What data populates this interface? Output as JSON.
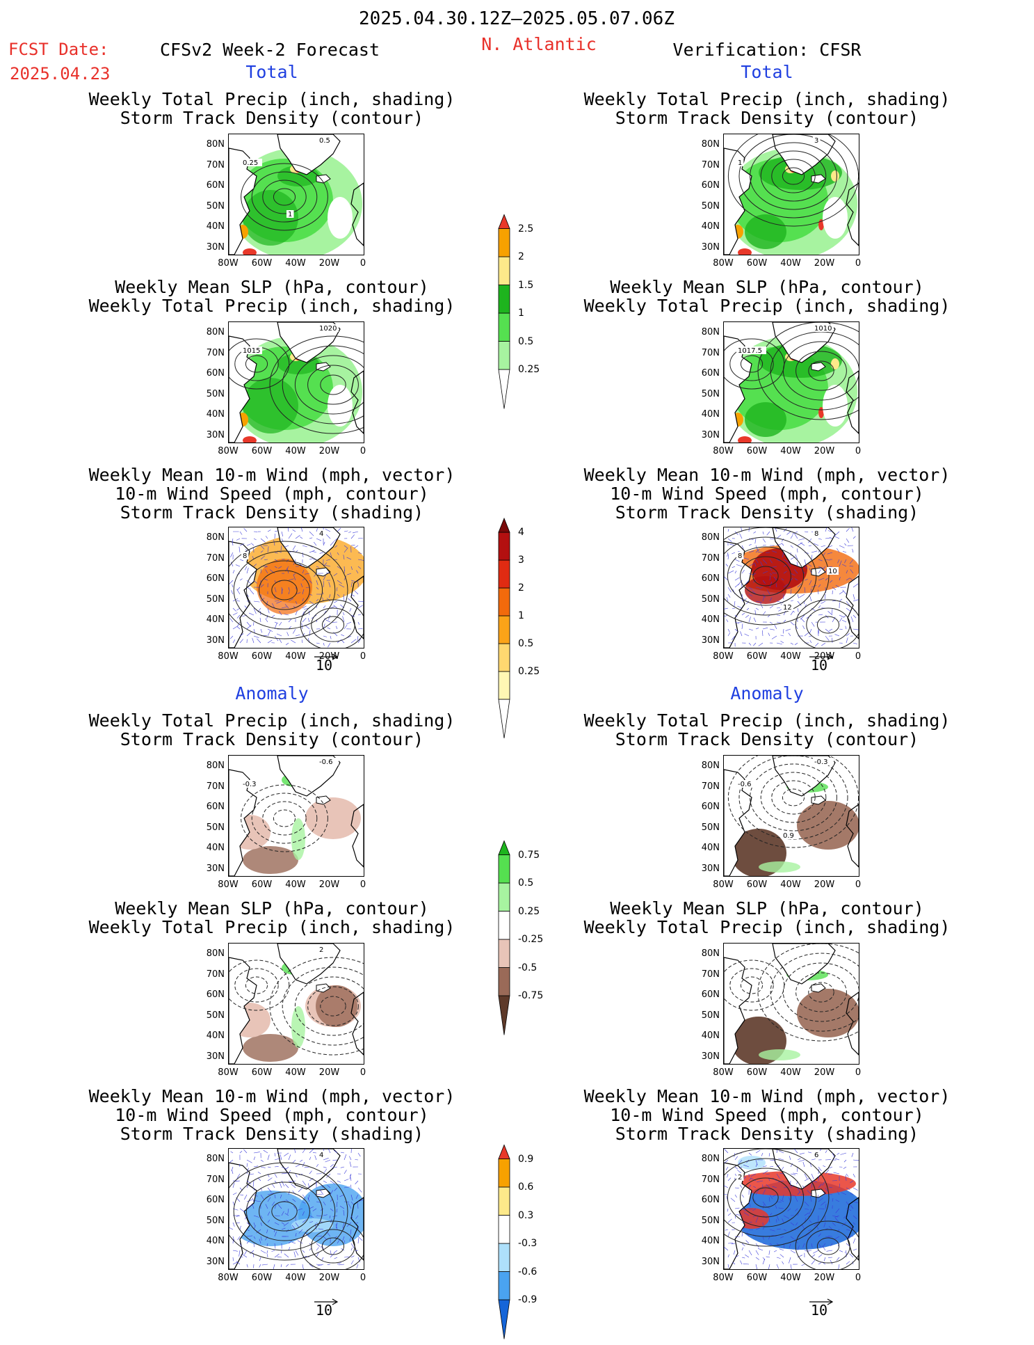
{
  "header": {
    "period": "2025.04.30.12Z–2025.05.07.06Z",
    "fcst_label": "FCST Date:",
    "fcst_date": "2025.04.23",
    "forecast_title": "CFSv2 Week-2 Forecast",
    "region": "N. Atlantic",
    "verification_title": "Verification: CFSR"
  },
  "sections": {
    "total": "Total",
    "anomaly": "Anomaly"
  },
  "panel_titles": {
    "precip_track": [
      "Weekly Total Precip (inch, shading)",
      "Storm Track Density (contour)"
    ],
    "slp_precip": [
      "Weekly Mean SLP (hPa, contour)",
      "Weekly Total Precip (inch, shading)"
    ],
    "wind_track": [
      "Weekly Mean 10-m Wind (mph, vector)",
      "10-m Wind Speed (mph, contour)",
      "Storm Track Density (shading)"
    ]
  },
  "axes": {
    "lat_labels": [
      "80N",
      "70N",
      "60N",
      "50N",
      "40N",
      "30N"
    ],
    "lon_labels": [
      "80W",
      "60W",
      "40W",
      "20W",
      "0"
    ]
  },
  "vector_reference": "10",
  "contour_labels": {
    "fc_total_precip": [
      "0.5",
      "0.25",
      "1"
    ],
    "vf_total_precip": [
      "3",
      "1"
    ],
    "fc_total_slp": [
      "1020",
      "1015"
    ],
    "vf_total_slp": [
      "1010",
      "1017.5"
    ],
    "fc_total_wind": [
      "4",
      "8"
    ],
    "vf_total_wind": [
      "8",
      "8",
      "12",
      "10"
    ],
    "fc_anom_precip": [
      "-0.6",
      "-0.3"
    ],
    "vf_anom_precip": [
      "-0.3",
      "-0.6",
      "0.9"
    ],
    "fc_anom_slp": [
      "2"
    ],
    "fc_anom_wind": [
      "4"
    ],
    "vf_anom_wind": [
      "6",
      "2"
    ]
  },
  "colorbars": {
    "precip_total": {
      "labels": [
        "2.5",
        "2",
        "1.5",
        "1",
        "0.5",
        "0.25"
      ],
      "colors": [
        "#ffffff",
        "#a7f3a0",
        "#55e050",
        "#1eb41e",
        "#fde98a",
        "#f7a100",
        "#e8382a"
      ]
    },
    "track_total": {
      "labels": [
        "4",
        "3",
        "2",
        "1",
        "0.5",
        "0.25"
      ],
      "colors": [
        "#ffffff",
        "#fff7b4",
        "#ffd870",
        "#fba318",
        "#f26a0c",
        "#e02b12",
        "#b31010",
        "#7a0a0a"
      ]
    },
    "precip_anom": {
      "labels": [
        "0.75",
        "0.5",
        "0.25",
        "-0.25",
        "-0.5",
        "-0.75"
      ],
      "colors": [
        "#5e3a2a",
        "#9a6a58",
        "#e8c4b8",
        "#ffffff",
        "#a7f3a0",
        "#55e050",
        "#1eb41e"
      ]
    },
    "track_anom": {
      "labels": [
        "0.9",
        "0.6",
        "0.3",
        "-0.3",
        "-0.6",
        "-0.9"
      ],
      "colors": [
        "#1565d8",
        "#4aa3f0",
        "#aee0fb",
        "#ffffff",
        "#fde98a",
        "#f7a100",
        "#e8382a"
      ]
    }
  }
}
